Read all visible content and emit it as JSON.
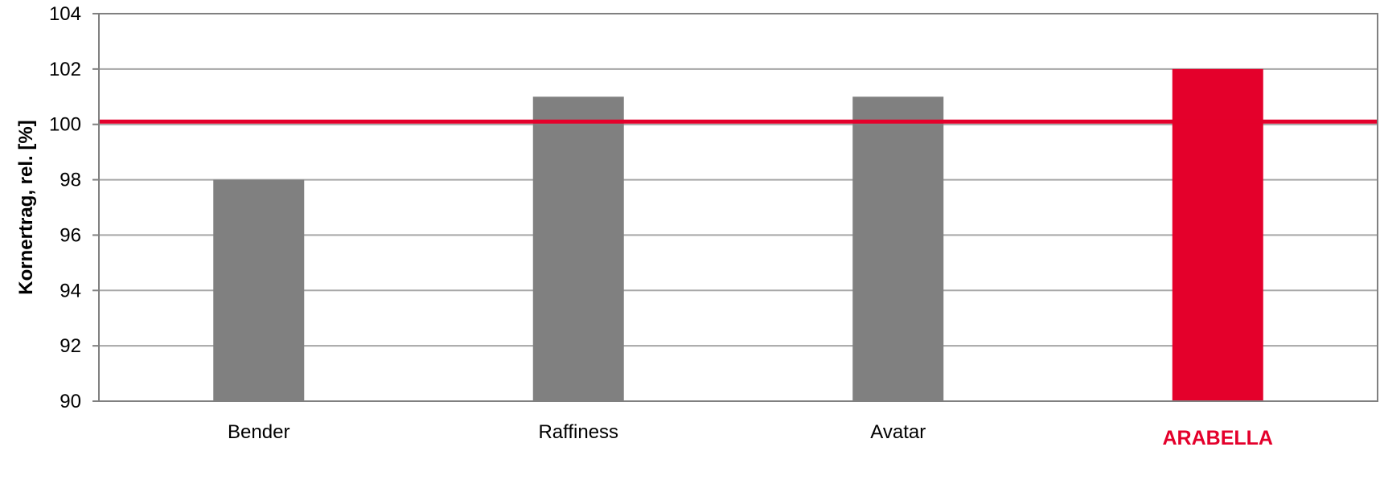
{
  "chart_data": {
    "type": "bar",
    "title": "",
    "xlabel": "",
    "ylabel": "Kornertrag, rel. [%]",
    "ylim": [
      90,
      104
    ],
    "yticks": [
      90,
      92,
      94,
      96,
      98,
      100,
      102,
      104
    ],
    "grid": true,
    "categories": [
      "Bender",
      "Raffiness",
      "Avatar",
      "ARABELLA"
    ],
    "values": [
      98,
      101,
      101,
      102
    ],
    "highlight_category": "ARABELLA",
    "reference_line": 100.1,
    "colors": {
      "bar": "#808080",
      "highlight": "#e4002b",
      "reference_line": "#e4002b",
      "grid": "#a6a6a6",
      "axis": "#808080"
    }
  }
}
